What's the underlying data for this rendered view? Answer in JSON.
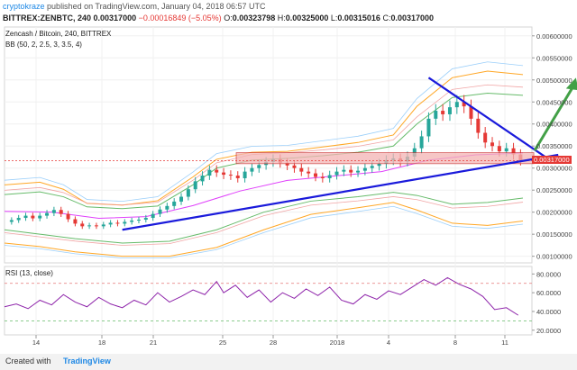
{
  "header": {
    "author": "cryptokraze",
    "published_text": "published on TradingView.com, January 04, 2018 06:57 UTC",
    "symbol_line": "BITTREX:ZENBTC, 240",
    "last": "0.00317000",
    "change": "−0.00016849 (−5.05%)",
    "open_label": "O:",
    "open": "0.00323798",
    "high_label": "H:",
    "high": "0.00325000",
    "low_label": "L:",
    "low": "0.00315016",
    "close_label": "C:",
    "close": "0.00317000"
  },
  "main_panel": {
    "title": "Zencash / Bitcoin, 240, BITTREX",
    "indicator": "BB (50, 2, 2.5, 3, 3.5, 4)",
    "price_tag": "0.00317000"
  },
  "rsi_panel": {
    "title": "RSI (13, close)"
  },
  "footer": {
    "made_with": "Created with",
    "brand": "TradingView"
  },
  "colors": {
    "up": "#26a69a",
    "down": "#e53935",
    "trend": "#1a1adb",
    "arrow": "#43a047",
    "zone": "#f3b4b4"
  },
  "chart_data": [
    {
      "type": "candlestick",
      "title": "Zencash / Bitcoin, 240, BITTREX",
      "x_tick_labels": [
        "14",
        "18",
        "21",
        "25",
        "28",
        "2018",
        "4",
        "8",
        "11"
      ],
      "y_tick_labels": [
        "0.00600000",
        "0.00550000",
        "0.00500000",
        "0.00450000",
        "0.00400000",
        "0.00350000",
        "0.00300000",
        "0.00250000",
        "0.00200000",
        "0.00150000",
        "0.00100000"
      ],
      "ylim": [
        0.00085,
        0.0062
      ],
      "last_price": 0.00317,
      "price_path": [
        [
          0,
          0.00178
        ],
        [
          6,
          0.00182
        ],
        [
          12,
          0.00187
        ],
        [
          18,
          0.00192
        ],
        [
          24,
          0.00186
        ],
        [
          30,
          0.00192
        ],
        [
          36,
          0.00198
        ],
        [
          42,
          0.00205
        ],
        [
          48,
          0.00196
        ],
        [
          54,
          0.00184
        ],
        [
          60,
          0.00174
        ],
        [
          66,
          0.00168
        ],
        [
          72,
          0.0017
        ],
        [
          78,
          0.00168
        ],
        [
          84,
          0.00172
        ],
        [
          90,
          0.00176
        ],
        [
          96,
          0.00174
        ],
        [
          102,
          0.00178
        ],
        [
          108,
          0.00181
        ],
        [
          114,
          0.00183
        ],
        [
          120,
          0.00187
        ],
        [
          126,
          0.00196
        ],
        [
          132,
          0.00206
        ],
        [
          138,
          0.00214
        ],
        [
          144,
          0.00224
        ],
        [
          150,
          0.00235
        ],
        [
          156,
          0.00252
        ],
        [
          162,
          0.0027
        ],
        [
          168,
          0.00283
        ],
        [
          174,
          0.00296
        ],
        [
          180,
          0.0029
        ],
        [
          186,
          0.00285
        ],
        [
          192,
          0.00283
        ],
        [
          198,
          0.00277
        ],
        [
          204,
          0.00292
        ],
        [
          210,
          0.003
        ],
        [
          216,
          0.00307
        ],
        [
          222,
          0.00314
        ],
        [
          228,
          0.0032
        ],
        [
          234,
          0.00312
        ],
        [
          240,
          0.00306
        ],
        [
          246,
          0.003
        ],
        [
          252,
          0.00292
        ],
        [
          258,
          0.00288
        ],
        [
          264,
          0.0028
        ],
        [
          270,
          0.00277
        ],
        [
          276,
          0.00284
        ],
        [
          282,
          0.00292
        ],
        [
          288,
          0.00296
        ],
        [
          294,
          0.0029
        ],
        [
          300,
          0.00294
        ],
        [
          306,
          0.003
        ],
        [
          312,
          0.00305
        ],
        [
          318,
          0.0031
        ],
        [
          324,
          0.00318
        ],
        [
          330,
          0.00322
        ],
        [
          336,
          0.00315
        ],
        [
          342,
          0.00326
        ],
        [
          348,
          0.00345
        ],
        [
          354,
          0.00372
        ],
        [
          360,
          0.00412
        ],
        [
          366,
          0.0043
        ],
        [
          372,
          0.00422
        ],
        [
          378,
          0.00438
        ],
        [
          384,
          0.0045
        ],
        [
          390,
          0.0044
        ],
        [
          396,
          0.00412
        ],
        [
          402,
          0.0038
        ],
        [
          408,
          0.00358
        ],
        [
          414,
          0.0035
        ],
        [
          420,
          0.00338
        ],
        [
          426,
          0.00345
        ],
        [
          432,
          0.00331
        ],
        [
          438,
          0.00317
        ]
      ],
      "bollinger_bands": {
        "upper_outer": [
          [
            0,
            0.00262
          ],
          [
            30,
            0.00268
          ],
          [
            50,
            0.00252
          ],
          [
            70,
            0.0022
          ],
          [
            100,
            0.00216
          ],
          [
            130,
            0.00226
          ],
          [
            160,
            0.0028
          ],
          [
            180,
            0.0032
          ],
          [
            210,
            0.00336
          ],
          [
            240,
            0.00338
          ],
          [
            270,
            0.00348
          ],
          [
            300,
            0.00358
          ],
          [
            330,
            0.00375
          ],
          [
            350,
            0.0044
          ],
          [
            380,
            0.00505
          ],
          [
            410,
            0.0052
          ],
          [
            440,
            0.00512
          ]
        ],
        "upper_inner": [
          [
            0,
            0.0024
          ],
          [
            30,
            0.00246
          ],
          [
            50,
            0.00235
          ],
          [
            70,
            0.00212
          ],
          [
            100,
            0.00208
          ],
          [
            130,
            0.00214
          ],
          [
            160,
            0.00262
          ],
          [
            180,
            0.003
          ],
          [
            210,
            0.00318
          ],
          [
            240,
            0.00322
          ],
          [
            270,
            0.00328
          ],
          [
            300,
            0.00336
          ],
          [
            330,
            0.0035
          ],
          [
            350,
            0.004
          ],
          [
            380,
            0.0046
          ],
          [
            410,
            0.0047
          ],
          [
            440,
            0.00465
          ]
        ],
        "middle": [
          [
            0,
            0.00202
          ],
          [
            40,
            0.002
          ],
          [
            80,
            0.00186
          ],
          [
            120,
            0.0019
          ],
          [
            160,
            0.00215
          ],
          [
            200,
            0.00248
          ],
          [
            240,
            0.00272
          ],
          [
            280,
            0.00282
          ],
          [
            320,
            0.00292
          ],
          [
            360,
            0.00318
          ],
          [
            400,
            0.0033
          ],
          [
            440,
            0.00334
          ]
        ],
        "lower_inner": [
          [
            0,
            0.0016
          ],
          [
            30,
            0.0015
          ],
          [
            60,
            0.0014
          ],
          [
            100,
            0.0013
          ],
          [
            140,
            0.00134
          ],
          [
            180,
            0.0016
          ],
          [
            220,
            0.002
          ],
          [
            260,
            0.00225
          ],
          [
            300,
            0.00235
          ],
          [
            330,
            0.00245
          ],
          [
            350,
            0.00238
          ],
          [
            380,
            0.00218
          ],
          [
            410,
            0.00222
          ],
          [
            440,
            0.00232
          ]
        ],
        "lower_outer": [
          [
            0,
            0.0013
          ],
          [
            30,
            0.00122
          ],
          [
            60,
            0.0011
          ],
          [
            100,
            0.001
          ],
          [
            140,
            0.001
          ],
          [
            180,
            0.0012
          ],
          [
            220,
            0.0016
          ],
          [
            260,
            0.00195
          ],
          [
            300,
            0.0021
          ],
          [
            330,
            0.00222
          ],
          [
            350,
            0.00205
          ],
          [
            380,
            0.00175
          ],
          [
            410,
            0.0017
          ],
          [
            440,
            0.0018
          ]
        ]
      },
      "annotations": {
        "support_trendline": [
          [
            100,
            0.0016
          ],
          [
            470,
            0.0033
          ]
        ],
        "resistance_trendline": [
          [
            360,
            0.00505
          ],
          [
            462,
            0.0032
          ]
        ],
        "horizontal_zone": [
          0.0031,
          0.00335
        ],
        "arrow": [
          [
            450,
            0.0034
          ],
          [
            485,
            0.00505
          ]
        ]
      }
    },
    {
      "type": "line",
      "title": "RSI (13, close)",
      "y_tick_labels": [
        "80.0000",
        "60.0000",
        "40.0000",
        "20.0000"
      ],
      "ylim": [
        15,
        88
      ],
      "reference_lines": [
        70,
        30
      ],
      "values": [
        [
          0,
          45
        ],
        [
          10,
          48
        ],
        [
          20,
          43
        ],
        [
          30,
          52
        ],
        [
          40,
          47
        ],
        [
          50,
          58
        ],
        [
          60,
          50
        ],
        [
          70,
          45
        ],
        [
          80,
          55
        ],
        [
          90,
          48
        ],
        [
          100,
          44
        ],
        [
          110,
          52
        ],
        [
          120,
          47
        ],
        [
          130,
          60
        ],
        [
          140,
          50
        ],
        [
          150,
          56
        ],
        [
          160,
          63
        ],
        [
          170,
          58
        ],
        [
          180,
          72
        ],
        [
          186,
          60
        ],
        [
          196,
          68
        ],
        [
          206,
          55
        ],
        [
          216,
          63
        ],
        [
          226,
          50
        ],
        [
          236,
          60
        ],
        [
          246,
          54
        ],
        [
          256,
          64
        ],
        [
          266,
          57
        ],
        [
          276,
          66
        ],
        [
          286,
          52
        ],
        [
          296,
          48
        ],
        [
          306,
          58
        ],
        [
          316,
          53
        ],
        [
          326,
          62
        ],
        [
          336,
          58
        ],
        [
          346,
          66
        ],
        [
          356,
          74
        ],
        [
          366,
          68
        ],
        [
          376,
          76
        ],
        [
          386,
          69
        ],
        [
          396,
          64
        ],
        [
          406,
          56
        ],
        [
          416,
          42
        ],
        [
          426,
          44
        ],
        [
          436,
          36
        ]
      ]
    }
  ]
}
